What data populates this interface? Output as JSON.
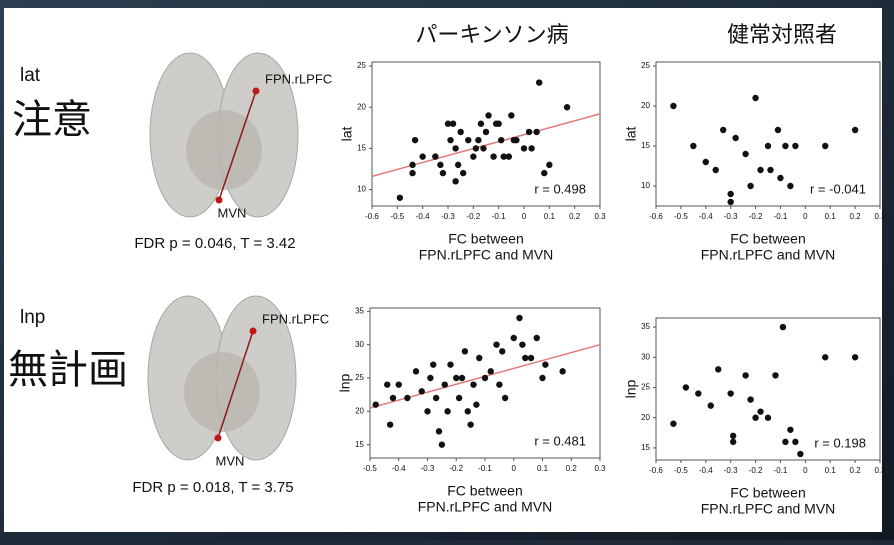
{
  "slide": {
    "column_titles": [
      "パーキンソン病",
      "健常対照者"
    ],
    "rows": [
      {
        "measure": "lat",
        "label": "注意",
        "stats": "FDR p = 0.046, T = 3.42",
        "region_a": "FPN.rLPFC",
        "region_b": "MVN"
      },
      {
        "measure": "lnp",
        "label": "無計画",
        "stats": "FDR p = 0.018, T = 3.75",
        "region_a": "FPN.rLPFC",
        "region_b": "MVN"
      }
    ]
  },
  "chart_data": [
    {
      "type": "scatter",
      "color": "#111111",
      "x": [
        -0.49,
        -0.44,
        -0.44,
        -0.43,
        -0.4,
        -0.35,
        -0.33,
        -0.32,
        -0.3,
        -0.29,
        -0.28,
        -0.27,
        -0.27,
        -0.26,
        -0.25,
        -0.24,
        -0.22,
        -0.2,
        -0.19,
        -0.18,
        -0.17,
        -0.16,
        -0.15,
        -0.14,
        -0.12,
        -0.11,
        -0.1,
        -0.09,
        -0.08,
        -0.06,
        -0.05,
        -0.04,
        -0.03,
        0,
        0.02,
        0.03,
        0.05,
        0.06,
        0.08,
        0.1,
        0.17
      ],
      "values": [
        9,
        12,
        13,
        16,
        14,
        14,
        13,
        12,
        18,
        16,
        18,
        15,
        11,
        13,
        17,
        12,
        16,
        14,
        15,
        16,
        18,
        15,
        17,
        19,
        14,
        18,
        18,
        16,
        14,
        14,
        19,
        16,
        16,
        15,
        17,
        15,
        17,
        23,
        12,
        13,
        20
      ],
      "trendline": {
        "x": [
          -0.6,
          0.3
        ],
        "values": [
          11.6,
          19.2
        ],
        "color": "#e07a7a"
      },
      "xlim": [
        -0.6,
        0.3
      ],
      "ylim": [
        8,
        25.5
      ],
      "xticks": [
        -0.6,
        -0.5,
        -0.4,
        -0.3,
        -0.2,
        -0.1,
        0,
        0.1,
        0.2,
        0.3
      ],
      "yticks": [
        10,
        15,
        20,
        25
      ],
      "xlabel": [
        "FC between",
        "FPN.rLPFC and MVN"
      ],
      "ylabel": "lat",
      "annotation": "r = 0.498"
    },
    {
      "type": "scatter",
      "color": "#111111",
      "x": [
        -0.53,
        -0.45,
        -0.4,
        -0.36,
        -0.33,
        -0.3,
        -0.3,
        -0.28,
        -0.24,
        -0.22,
        -0.2,
        -0.18,
        -0.15,
        -0.14,
        -0.11,
        -0.1,
        -0.08,
        -0.06,
        -0.04,
        0.08,
        0.2
      ],
      "values": [
        20,
        15,
        13,
        12,
        17,
        9,
        8,
        16,
        14,
        10,
        21,
        12,
        15,
        12,
        17,
        11,
        15,
        10,
        15,
        15,
        17
      ],
      "xlim": [
        -0.6,
        0.3
      ],
      "ylim": [
        7.5,
        25.5
      ],
      "xticks": [
        -0.6,
        -0.5,
        -0.4,
        -0.3,
        -0.2,
        -0.1,
        0,
        0.1,
        0.2,
        0.3
      ],
      "yticks": [
        10,
        15,
        20,
        25
      ],
      "xlabel": [
        "FC between",
        "FPN.rLPFC and MVN"
      ],
      "ylabel": "lat",
      "annotation": "r = -0.041"
    },
    {
      "type": "scatter",
      "color": "#111111",
      "x": [
        -0.48,
        -0.44,
        -0.43,
        -0.42,
        -0.4,
        -0.37,
        -0.34,
        -0.32,
        -0.3,
        -0.29,
        -0.28,
        -0.27,
        -0.26,
        -0.25,
        -0.24,
        -0.23,
        -0.22,
        -0.2,
        -0.19,
        -0.18,
        -0.17,
        -0.16,
        -0.15,
        -0.14,
        -0.13,
        -0.12,
        -0.1,
        -0.08,
        -0.06,
        -0.05,
        -0.04,
        -0.03,
        0,
        0.02,
        0.03,
        0.04,
        0.06,
        0.08,
        0.1,
        0.11,
        0.17
      ],
      "values": [
        21,
        24,
        18,
        22,
        24,
        22,
        26,
        23,
        20,
        25,
        27,
        22,
        17,
        15,
        24,
        20,
        27,
        25,
        22,
        25,
        29,
        20,
        18,
        24,
        21,
        28,
        25,
        26,
        30,
        24,
        29,
        22,
        31,
        34,
        30,
        28,
        28,
        31,
        25,
        27,
        26
      ],
      "trendline": {
        "x": [
          -0.5,
          0.3
        ],
        "values": [
          20.5,
          30
        ],
        "color": "#e07a7a"
      },
      "xlim": [
        -0.5,
        0.3
      ],
      "ylim": [
        13,
        35.5
      ],
      "xticks": [
        -0.5,
        -0.4,
        -0.3,
        -0.2,
        -0.1,
        0,
        0.1,
        0.2,
        0.3
      ],
      "yticks": [
        15,
        20,
        25,
        30,
        35
      ],
      "xlabel": [
        "FC between",
        "FPN.rLPFC and MVN"
      ],
      "ylabel": "lnp",
      "annotation": "r = 0.481"
    },
    {
      "type": "scatter",
      "color": "#111111",
      "x": [
        -0.53,
        -0.48,
        -0.43,
        -0.38,
        -0.35,
        -0.3,
        -0.29,
        -0.29,
        -0.24,
        -0.22,
        -0.2,
        -0.18,
        -0.15,
        -0.12,
        -0.09,
        -0.08,
        -0.06,
        -0.04,
        -0.02,
        0.08,
        0.2
      ],
      "values": [
        19,
        25,
        24,
        22,
        28,
        24,
        17,
        16,
        27,
        23,
        20,
        21,
        20,
        27,
        35,
        16,
        18,
        16,
        14,
        30,
        30
      ],
      "xlim": [
        -0.6,
        0.3
      ],
      "ylim": [
        13,
        36.5
      ],
      "xticks": [
        -0.6,
        -0.5,
        -0.4,
        -0.3,
        -0.2,
        -0.1,
        0,
        0.1,
        0.2,
        0.3
      ],
      "yticks": [
        15,
        20,
        25,
        30,
        35
      ],
      "xlabel": [
        "FC between",
        "FPN.rLPFC and MVN"
      ],
      "ylabel": "lnp",
      "annotation": "r = 0.198"
    }
  ]
}
